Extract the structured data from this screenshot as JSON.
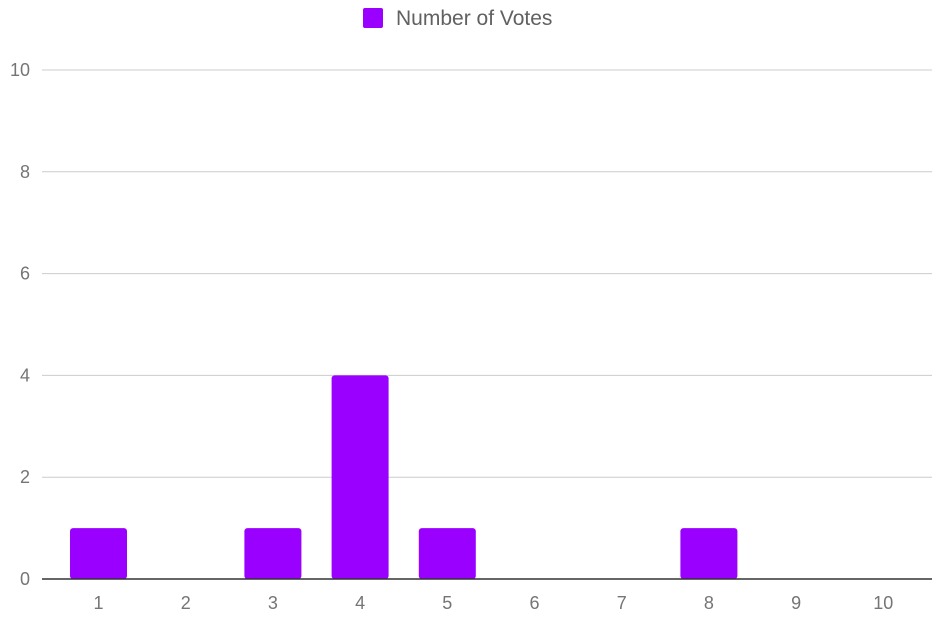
{
  "chart_data": {
    "type": "bar",
    "categories": [
      "1",
      "2",
      "3",
      "4",
      "5",
      "6",
      "7",
      "8",
      "9",
      "10"
    ],
    "series": [
      {
        "name": "Number of Votes",
        "values": [
          1,
          0,
          1,
          4,
          1,
          0,
          0,
          1,
          0,
          0
        ],
        "color": "#9900ff"
      }
    ],
    "title": "",
    "xlabel": "",
    "ylabel": "",
    "ylim": [
      0,
      10
    ],
    "yticks": [
      "0",
      "2",
      "4",
      "6",
      "8",
      "10"
    ],
    "grid": true,
    "legend_position": "top-center"
  }
}
